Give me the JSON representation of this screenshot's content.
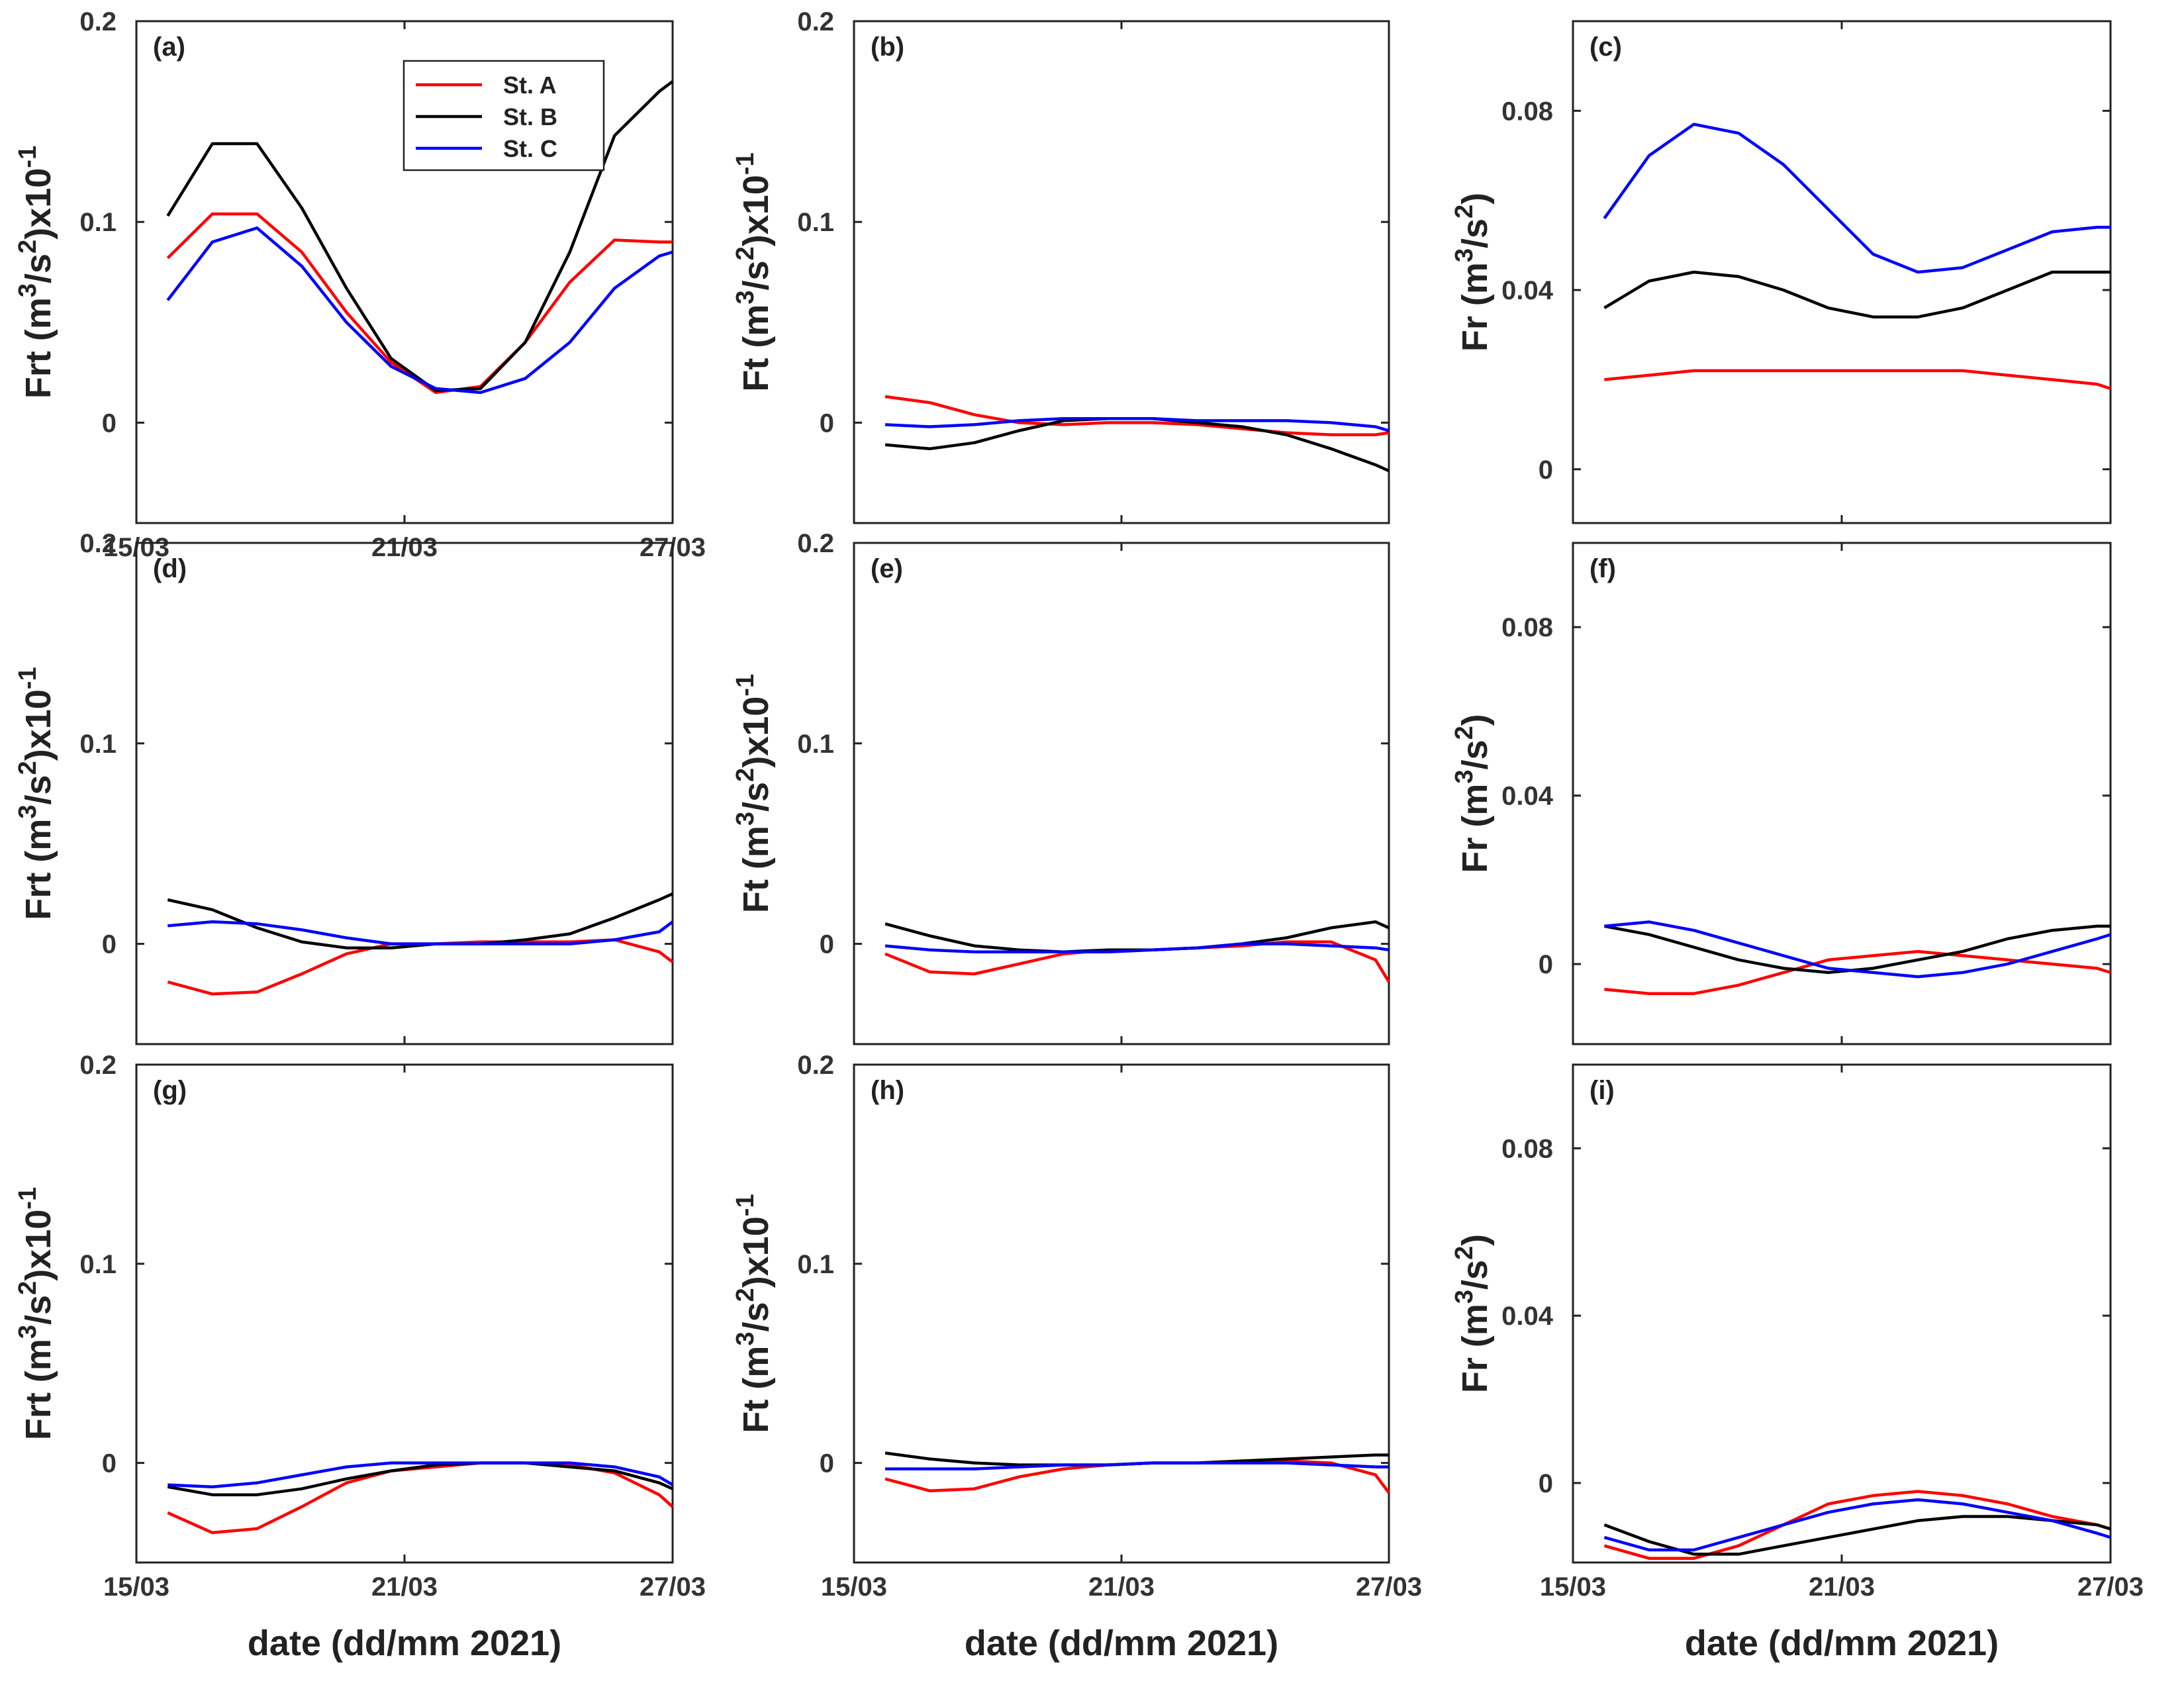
{
  "figure": {
    "xlabel": "date (dd/mm 2021)",
    "legend": {
      "placement": "top-center of panel (a)",
      "entries": [
        {
          "name": "St. A",
          "color": "#ff0000"
        },
        {
          "name": "St. B",
          "color": "#000000"
        },
        {
          "name": "St. C",
          "color": "#0000ff"
        }
      ]
    }
  },
  "chart_data": [
    {
      "panel": "(a)",
      "type": "line",
      "ylabel_main": "Frt (m",
      "ylabel_exp1": "3",
      "ylabel_mid": "/s",
      "ylabel_exp2": "2",
      "ylabel_tail": ")x10",
      "ylabel_exp3": "-1",
      "xlim": [
        0,
        12
      ],
      "ylim": [
        -0.05,
        0.2
      ],
      "yticks": [
        0,
        0.1,
        0.2
      ],
      "ytick_labels": [
        "0",
        "0.1",
        "0.2"
      ],
      "xticks": [
        0,
        6,
        12
      ],
      "xtick_labels": [
        "15/03",
        "21/03",
        "27/03"
      ],
      "show_xticklabels": true,
      "x": [
        0.7,
        1.7,
        2.7,
        3.7,
        4.7,
        5.7,
        6.7,
        7.7,
        8.7,
        9.7,
        10.7,
        11.7,
        12
      ],
      "series": [
        {
          "name": "St. A",
          "color": "#ff0000",
          "values": [
            0.082,
            0.104,
            0.104,
            0.085,
            0.055,
            0.03,
            0.015,
            0.018,
            0.04,
            0.07,
            0.091,
            0.09,
            0.09
          ]
        },
        {
          "name": "St. B",
          "color": "#000000",
          "values": [
            0.103,
            0.139,
            0.139,
            0.107,
            0.067,
            0.032,
            0.016,
            0.017,
            0.04,
            0.085,
            0.143,
            0.165,
            0.17
          ]
        },
        {
          "name": "St. C",
          "color": "#0000ff",
          "values": [
            0.061,
            0.09,
            0.097,
            0.078,
            0.05,
            0.028,
            0.017,
            0.015,
            0.022,
            0.04,
            0.067,
            0.083,
            0.085
          ]
        }
      ]
    },
    {
      "panel": "(b)",
      "type": "line",
      "ylabel_main": "Ft (m",
      "ylabel_exp1": "3",
      "ylabel_mid": "/s",
      "ylabel_exp2": "2",
      "ylabel_tail": ")x10",
      "ylabel_exp3": "-1",
      "xlim": [
        0,
        12
      ],
      "ylim": [
        -0.05,
        0.2
      ],
      "yticks": [
        0,
        0.1,
        0.2
      ],
      "ytick_labels": [
        "0",
        "0.1",
        "0.2"
      ],
      "xticks": [
        0,
        6,
        12
      ],
      "xtick_labels": [
        "15/03",
        "21/03",
        "27/03"
      ],
      "show_xticklabels": false,
      "x": [
        0.7,
        1.7,
        2.7,
        3.7,
        4.7,
        5.7,
        6.7,
        7.7,
        8.7,
        9.7,
        10.7,
        11.7,
        12
      ],
      "series": [
        {
          "name": "St. A",
          "color": "#ff0000",
          "values": [
            0.013,
            0.01,
            0.004,
            0.0,
            -0.001,
            0.0,
            0.0,
            -0.001,
            -0.003,
            -0.005,
            -0.006,
            -0.006,
            -0.005
          ]
        },
        {
          "name": "St. B",
          "color": "#000000",
          "values": [
            -0.011,
            -0.013,
            -0.01,
            -0.004,
            0.001,
            0.002,
            0.002,
            0.0,
            -0.002,
            -0.006,
            -0.013,
            -0.021,
            -0.024
          ]
        },
        {
          "name": "St. C",
          "color": "#0000ff",
          "values": [
            -0.001,
            -0.002,
            -0.001,
            0.001,
            0.002,
            0.002,
            0.002,
            0.001,
            0.001,
            0.001,
            0.0,
            -0.002,
            -0.004
          ]
        }
      ]
    },
    {
      "panel": "(c)",
      "type": "line",
      "ylabel_main": "Fr (m",
      "ylabel_exp1": "3",
      "ylabel_mid": "/s",
      "ylabel_exp2": "2",
      "ylabel_tail": ")",
      "ylabel_exp3": "",
      "xlim": [
        0,
        12
      ],
      "ylim": [
        -0.012,
        0.1
      ],
      "yticks": [
        0,
        0.04,
        0.08
      ],
      "ytick_labels": [
        "0",
        "0.04",
        "0.08"
      ],
      "xticks": [
        0,
        6,
        12
      ],
      "xtick_labels": [
        "15/03",
        "21/03",
        "27/03"
      ],
      "show_xticklabels": false,
      "x": [
        0.7,
        1.7,
        2.7,
        3.7,
        4.7,
        5.7,
        6.7,
        7.7,
        8.7,
        9.7,
        10.7,
        11.7,
        12
      ],
      "series": [
        {
          "name": "St. A",
          "color": "#ff0000",
          "values": [
            0.02,
            0.021,
            0.022,
            0.022,
            0.022,
            0.022,
            0.022,
            0.022,
            0.022,
            0.021,
            0.02,
            0.019,
            0.018
          ]
        },
        {
          "name": "St. B",
          "color": "#000000",
          "values": [
            0.036,
            0.042,
            0.044,
            0.043,
            0.04,
            0.036,
            0.034,
            0.034,
            0.036,
            0.04,
            0.044,
            0.044,
            0.044
          ]
        },
        {
          "name": "St. C",
          "color": "#0000ff",
          "values": [
            0.056,
            0.07,
            0.077,
            0.075,
            0.068,
            0.058,
            0.048,
            0.044,
            0.045,
            0.049,
            0.053,
            0.054,
            0.054
          ]
        }
      ]
    },
    {
      "panel": "(d)",
      "type": "line",
      "ylabel_main": "Frt (m",
      "ylabel_exp1": "3",
      "ylabel_mid": "/s",
      "ylabel_exp2": "2",
      "ylabel_tail": ")x10",
      "ylabel_exp3": "-1",
      "xlim": [
        0,
        12
      ],
      "ylim": [
        -0.05,
        0.2
      ],
      "yticks": [
        0,
        0.1,
        0.2
      ],
      "ytick_labels": [
        "0",
        "0.1",
        "0.2"
      ],
      "xticks": [
        0,
        6,
        12
      ],
      "xtick_labels": [
        "15/03",
        "21/03",
        "27/03"
      ],
      "show_xticklabels": false,
      "x": [
        0.7,
        1.7,
        2.7,
        3.7,
        4.7,
        5.7,
        6.7,
        7.7,
        8.7,
        9.7,
        10.7,
        11.7,
        12
      ],
      "series": [
        {
          "name": "St. A",
          "color": "#ff0000",
          "values": [
            -0.019,
            -0.025,
            -0.024,
            -0.015,
            -0.005,
            0.0,
            0.0,
            0.001,
            0.001,
            0.001,
            0.002,
            -0.004,
            -0.009
          ]
        },
        {
          "name": "St. B",
          "color": "#000000",
          "values": [
            0.022,
            0.017,
            0.008,
            0.001,
            -0.002,
            -0.002,
            0.0,
            0.0,
            0.002,
            0.005,
            0.013,
            0.022,
            0.025
          ]
        },
        {
          "name": "St. C",
          "color": "#0000ff",
          "values": [
            0.009,
            0.011,
            0.01,
            0.007,
            0.003,
            0.0,
            0.0,
            0.0,
            0.0,
            0.0,
            0.002,
            0.006,
            0.011
          ]
        }
      ]
    },
    {
      "panel": "(e)",
      "type": "line",
      "ylabel_main": "Ft (m",
      "ylabel_exp1": "3",
      "ylabel_mid": "/s",
      "ylabel_exp2": "2",
      "ylabel_tail": ")x10",
      "ylabel_exp3": "-1",
      "xlim": [
        0,
        12
      ],
      "ylim": [
        -0.05,
        0.2
      ],
      "yticks": [
        0,
        0.1,
        0.2
      ],
      "ytick_labels": [
        "0",
        "0.1",
        "0.2"
      ],
      "xticks": [
        0,
        6,
        12
      ],
      "xtick_labels": [
        "15/03",
        "21/03",
        "27/03"
      ],
      "show_xticklabels": false,
      "x": [
        0.7,
        1.7,
        2.7,
        3.7,
        4.7,
        5.7,
        6.7,
        7.7,
        8.7,
        9.7,
        10.7,
        11.7,
        12
      ],
      "series": [
        {
          "name": "St. A",
          "color": "#ff0000",
          "values": [
            -0.005,
            -0.014,
            -0.015,
            -0.01,
            -0.005,
            -0.003,
            -0.003,
            -0.002,
            -0.001,
            0.001,
            0.001,
            -0.008,
            -0.019
          ]
        },
        {
          "name": "St. B",
          "color": "#000000",
          "values": [
            0.01,
            0.004,
            -0.001,
            -0.003,
            -0.004,
            -0.003,
            -0.003,
            -0.002,
            0.0,
            0.003,
            0.008,
            0.011,
            0.008
          ]
        },
        {
          "name": "St. C",
          "color": "#0000ff",
          "values": [
            -0.001,
            -0.003,
            -0.004,
            -0.004,
            -0.004,
            -0.004,
            -0.003,
            -0.002,
            0.0,
            0.0,
            -0.001,
            -0.002,
            -0.003
          ]
        }
      ]
    },
    {
      "panel": "(f)",
      "type": "line",
      "ylabel_main": "Fr (m",
      "ylabel_exp1": "3",
      "ylabel_mid": "/s",
      "ylabel_exp2": "2",
      "ylabel_tail": ")",
      "ylabel_exp3": "",
      "xlim": [
        0,
        12
      ],
      "ylim": [
        -0.019,
        0.1
      ],
      "yticks": [
        0,
        0.04,
        0.08
      ],
      "ytick_labels": [
        "0",
        "0.04",
        "0.08"
      ],
      "xticks": [
        0,
        6,
        12
      ],
      "xtick_labels": [
        "15/03",
        "21/03",
        "27/03"
      ],
      "show_xticklabels": false,
      "x": [
        0.7,
        1.7,
        2.7,
        3.7,
        4.7,
        5.7,
        6.7,
        7.7,
        8.7,
        9.7,
        10.7,
        11.7,
        12
      ],
      "series": [
        {
          "name": "St. A",
          "color": "#ff0000",
          "values": [
            -0.006,
            -0.007,
            -0.007,
            -0.005,
            -0.002,
            0.001,
            0.002,
            0.003,
            0.002,
            0.001,
            0.0,
            -0.001,
            -0.002
          ]
        },
        {
          "name": "St. B",
          "color": "#000000",
          "values": [
            0.009,
            0.007,
            0.004,
            0.001,
            -0.001,
            -0.002,
            -0.001,
            0.001,
            0.003,
            0.006,
            0.008,
            0.009,
            0.009
          ]
        },
        {
          "name": "St. C",
          "color": "#0000ff",
          "values": [
            0.009,
            0.01,
            0.008,
            0.005,
            0.002,
            -0.001,
            -0.002,
            -0.003,
            -0.002,
            0.0,
            0.003,
            0.006,
            0.007
          ]
        }
      ]
    },
    {
      "panel": "(g)",
      "type": "line",
      "ylabel_main": "Frt (m",
      "ylabel_exp1": "3",
      "ylabel_mid": "/s",
      "ylabel_exp2": "2",
      "ylabel_tail": ")x10",
      "ylabel_exp3": "-1",
      "xlim": [
        0,
        12
      ],
      "ylim": [
        -0.05,
        0.2
      ],
      "yticks": [
        0,
        0.1,
        0.2
      ],
      "ytick_labels": [
        "0",
        "0.1",
        "0.2"
      ],
      "xticks": [
        0,
        6,
        12
      ],
      "xtick_labels": [
        "15/03",
        "21/03",
        "27/03"
      ],
      "show_xticklabels": true,
      "x": [
        0.7,
        1.7,
        2.7,
        3.7,
        4.7,
        5.7,
        6.7,
        7.7,
        8.7,
        9.7,
        10.7,
        11.7,
        12
      ],
      "series": [
        {
          "name": "St. A",
          "color": "#ff0000",
          "values": [
            -0.025,
            -0.035,
            -0.033,
            -0.022,
            -0.01,
            -0.004,
            -0.002,
            0.0,
            0.0,
            -0.001,
            -0.005,
            -0.016,
            -0.022
          ]
        },
        {
          "name": "St. B",
          "color": "#000000",
          "values": [
            -0.012,
            -0.016,
            -0.016,
            -0.013,
            -0.008,
            -0.004,
            -0.001,
            0.0,
            0.0,
            -0.002,
            -0.004,
            -0.01,
            -0.013
          ]
        },
        {
          "name": "St. C",
          "color": "#0000ff",
          "values": [
            -0.011,
            -0.012,
            -0.01,
            -0.006,
            -0.002,
            0.0,
            0.0,
            0.0,
            0.0,
            0.0,
            -0.002,
            -0.007,
            -0.011
          ]
        }
      ]
    },
    {
      "panel": "(h)",
      "type": "line",
      "ylabel_main": "Ft (m",
      "ylabel_exp1": "3",
      "ylabel_mid": "/s",
      "ylabel_exp2": "2",
      "ylabel_tail": ")x10",
      "ylabel_exp3": "-1",
      "xlim": [
        0,
        12
      ],
      "ylim": [
        -0.05,
        0.2
      ],
      "yticks": [
        0,
        0.1,
        0.2
      ],
      "ytick_labels": [
        "0",
        "0.1",
        "0.2"
      ],
      "xticks": [
        0,
        6,
        12
      ],
      "xtick_labels": [
        "15/03",
        "21/03",
        "27/03"
      ],
      "show_xticklabels": true,
      "x": [
        0.7,
        1.7,
        2.7,
        3.7,
        4.7,
        5.7,
        6.7,
        7.7,
        8.7,
        9.7,
        10.7,
        11.7,
        12
      ],
      "series": [
        {
          "name": "St. A",
          "color": "#ff0000",
          "values": [
            -0.008,
            -0.014,
            -0.013,
            -0.007,
            -0.003,
            -0.001,
            0.0,
            0.0,
            0.001,
            0.001,
            0.0,
            -0.006,
            -0.015
          ]
        },
        {
          "name": "St. B",
          "color": "#000000",
          "values": [
            0.005,
            0.002,
            0.0,
            -0.001,
            -0.001,
            -0.001,
            0.0,
            0.0,
            0.001,
            0.002,
            0.003,
            0.004,
            0.004
          ]
        },
        {
          "name": "St. C",
          "color": "#0000ff",
          "values": [
            -0.003,
            -0.003,
            -0.003,
            -0.002,
            -0.001,
            -0.001,
            0.0,
            0.0,
            0.0,
            0.0,
            -0.001,
            -0.002,
            -0.002
          ]
        }
      ]
    },
    {
      "panel": "(i)",
      "type": "line",
      "ylabel_main": "Fr (m",
      "ylabel_exp1": "3",
      "ylabel_mid": "/s",
      "ylabel_exp2": "2",
      "ylabel_tail": ")",
      "ylabel_exp3": "",
      "xlim": [
        0,
        12
      ],
      "ylim": [
        -0.019,
        0.1
      ],
      "yticks": [
        0,
        0.04,
        0.08
      ],
      "ytick_labels": [
        "0",
        "0.04",
        "0.08"
      ],
      "xticks": [
        0,
        6,
        12
      ],
      "xtick_labels": [
        "15/03",
        "21/03",
        "27/03"
      ],
      "show_xticklabels": true,
      "x": [
        0.7,
        1.7,
        2.7,
        3.7,
        4.7,
        5.7,
        6.7,
        7.7,
        8.7,
        9.7,
        10.7,
        11.7,
        12
      ],
      "series": [
        {
          "name": "St. A",
          "color": "#ff0000",
          "values": [
            -0.015,
            -0.018,
            -0.018,
            -0.015,
            -0.01,
            -0.005,
            -0.003,
            -0.002,
            -0.003,
            -0.005,
            -0.008,
            -0.01,
            -0.011
          ]
        },
        {
          "name": "St. B",
          "color": "#000000",
          "values": [
            -0.01,
            -0.014,
            -0.017,
            -0.017,
            -0.015,
            -0.013,
            -0.011,
            -0.009,
            -0.008,
            -0.008,
            -0.009,
            -0.01,
            -0.011
          ]
        },
        {
          "name": "St. C",
          "color": "#0000ff",
          "values": [
            -0.013,
            -0.016,
            -0.016,
            -0.013,
            -0.01,
            -0.007,
            -0.005,
            -0.004,
            -0.005,
            -0.007,
            -0.009,
            -0.012,
            -0.013
          ]
        }
      ]
    }
  ]
}
